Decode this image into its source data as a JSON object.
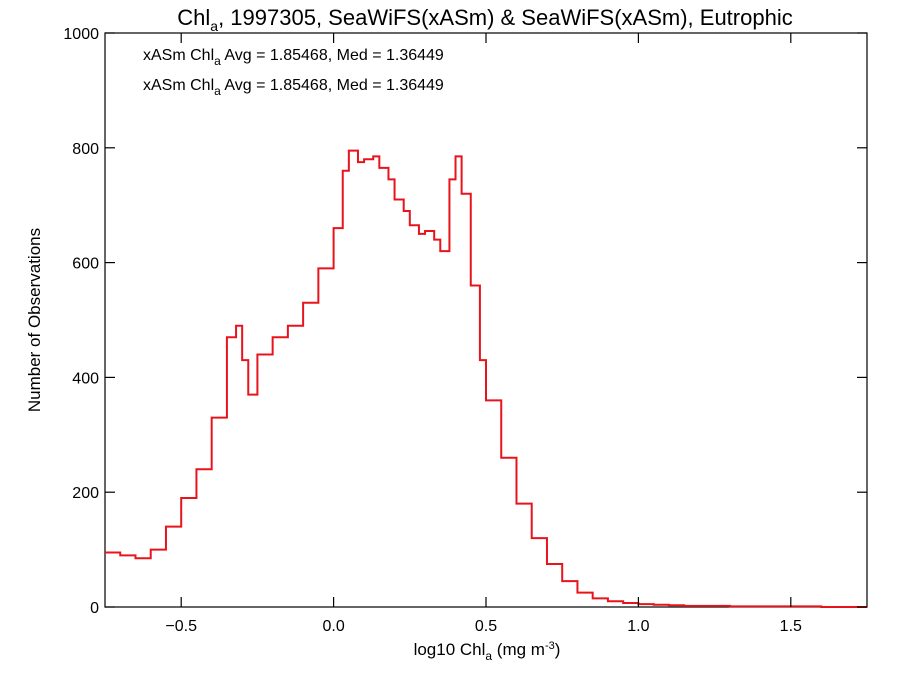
{
  "chart_data": {
    "type": "histogram-step",
    "title": {
      "main": "Chl",
      "sub": "a",
      "rest": ", 1997305, SeaWiFS(xASm) & SeaWiFS(xASm), Eutrophic"
    },
    "xlabel": {
      "main": "log10 Chl",
      "sub": "a",
      "rest": " (mg m",
      "sup": "-3",
      "end": ")"
    },
    "ylabel": "Number of Observations",
    "xlim": [
      -0.75,
      1.75
    ],
    "ylim": [
      0,
      1000
    ],
    "xticks": [
      {
        "value": -0.5,
        "label": "−0.5"
      },
      {
        "value": 0.0,
        "label": "0.0"
      },
      {
        "value": 0.5,
        "label": "0.5"
      },
      {
        "value": 1.0,
        "label": "1.0"
      },
      {
        "value": 1.5,
        "label": "1.5"
      }
    ],
    "yticks": [
      {
        "value": 0,
        "label": "0"
      },
      {
        "value": 200,
        "label": "200"
      },
      {
        "value": 400,
        "label": "400"
      },
      {
        "value": 600,
        "label": "600"
      },
      {
        "value": 800,
        "label": "800"
      },
      {
        "value": 1000,
        "label": "1000"
      }
    ],
    "legend": [
      {
        "pre": "xASm Chl",
        "sub": "a",
        "post": " Avg = 1.85468, Med = 1.36449",
        "color": "#000000"
      },
      {
        "pre": "xASm Chl",
        "sub": "a",
        "post": " Avg = 1.85468, Med = 1.36449",
        "color": "#e8141c"
      }
    ],
    "legend_position": "top-left",
    "series": [
      {
        "color": "#e8141c",
        "x": [
          -0.75,
          -0.7,
          -0.65,
          -0.6,
          -0.55,
          -0.5,
          -0.45,
          -0.4,
          -0.35,
          -0.32,
          -0.3,
          -0.28,
          -0.25,
          -0.2,
          -0.15,
          -0.1,
          -0.05,
          0.0,
          0.03,
          0.05,
          0.08,
          0.1,
          0.13,
          0.15,
          0.18,
          0.2,
          0.23,
          0.25,
          0.28,
          0.3,
          0.33,
          0.35,
          0.38,
          0.4,
          0.42,
          0.45,
          0.48,
          0.5,
          0.55,
          0.6,
          0.65,
          0.7,
          0.75,
          0.8,
          0.85,
          0.9,
          0.95,
          1.0,
          1.05,
          1.1,
          1.15,
          1.2,
          1.3,
          1.4,
          1.5,
          1.6,
          1.75
        ],
        "y": [
          95,
          90,
          85,
          100,
          140,
          190,
          240,
          330,
          470,
          490,
          430,
          370,
          440,
          470,
          490,
          530,
          590,
          660,
          760,
          795,
          775,
          780,
          785,
          765,
          745,
          710,
          690,
          665,
          650,
          655,
          640,
          620,
          745,
          785,
          720,
          560,
          430,
          360,
          260,
          180,
          120,
          75,
          45,
          25,
          15,
          10,
          7,
          5,
          4,
          3,
          2,
          2,
          1,
          1,
          1,
          0,
          0
        ]
      }
    ]
  }
}
